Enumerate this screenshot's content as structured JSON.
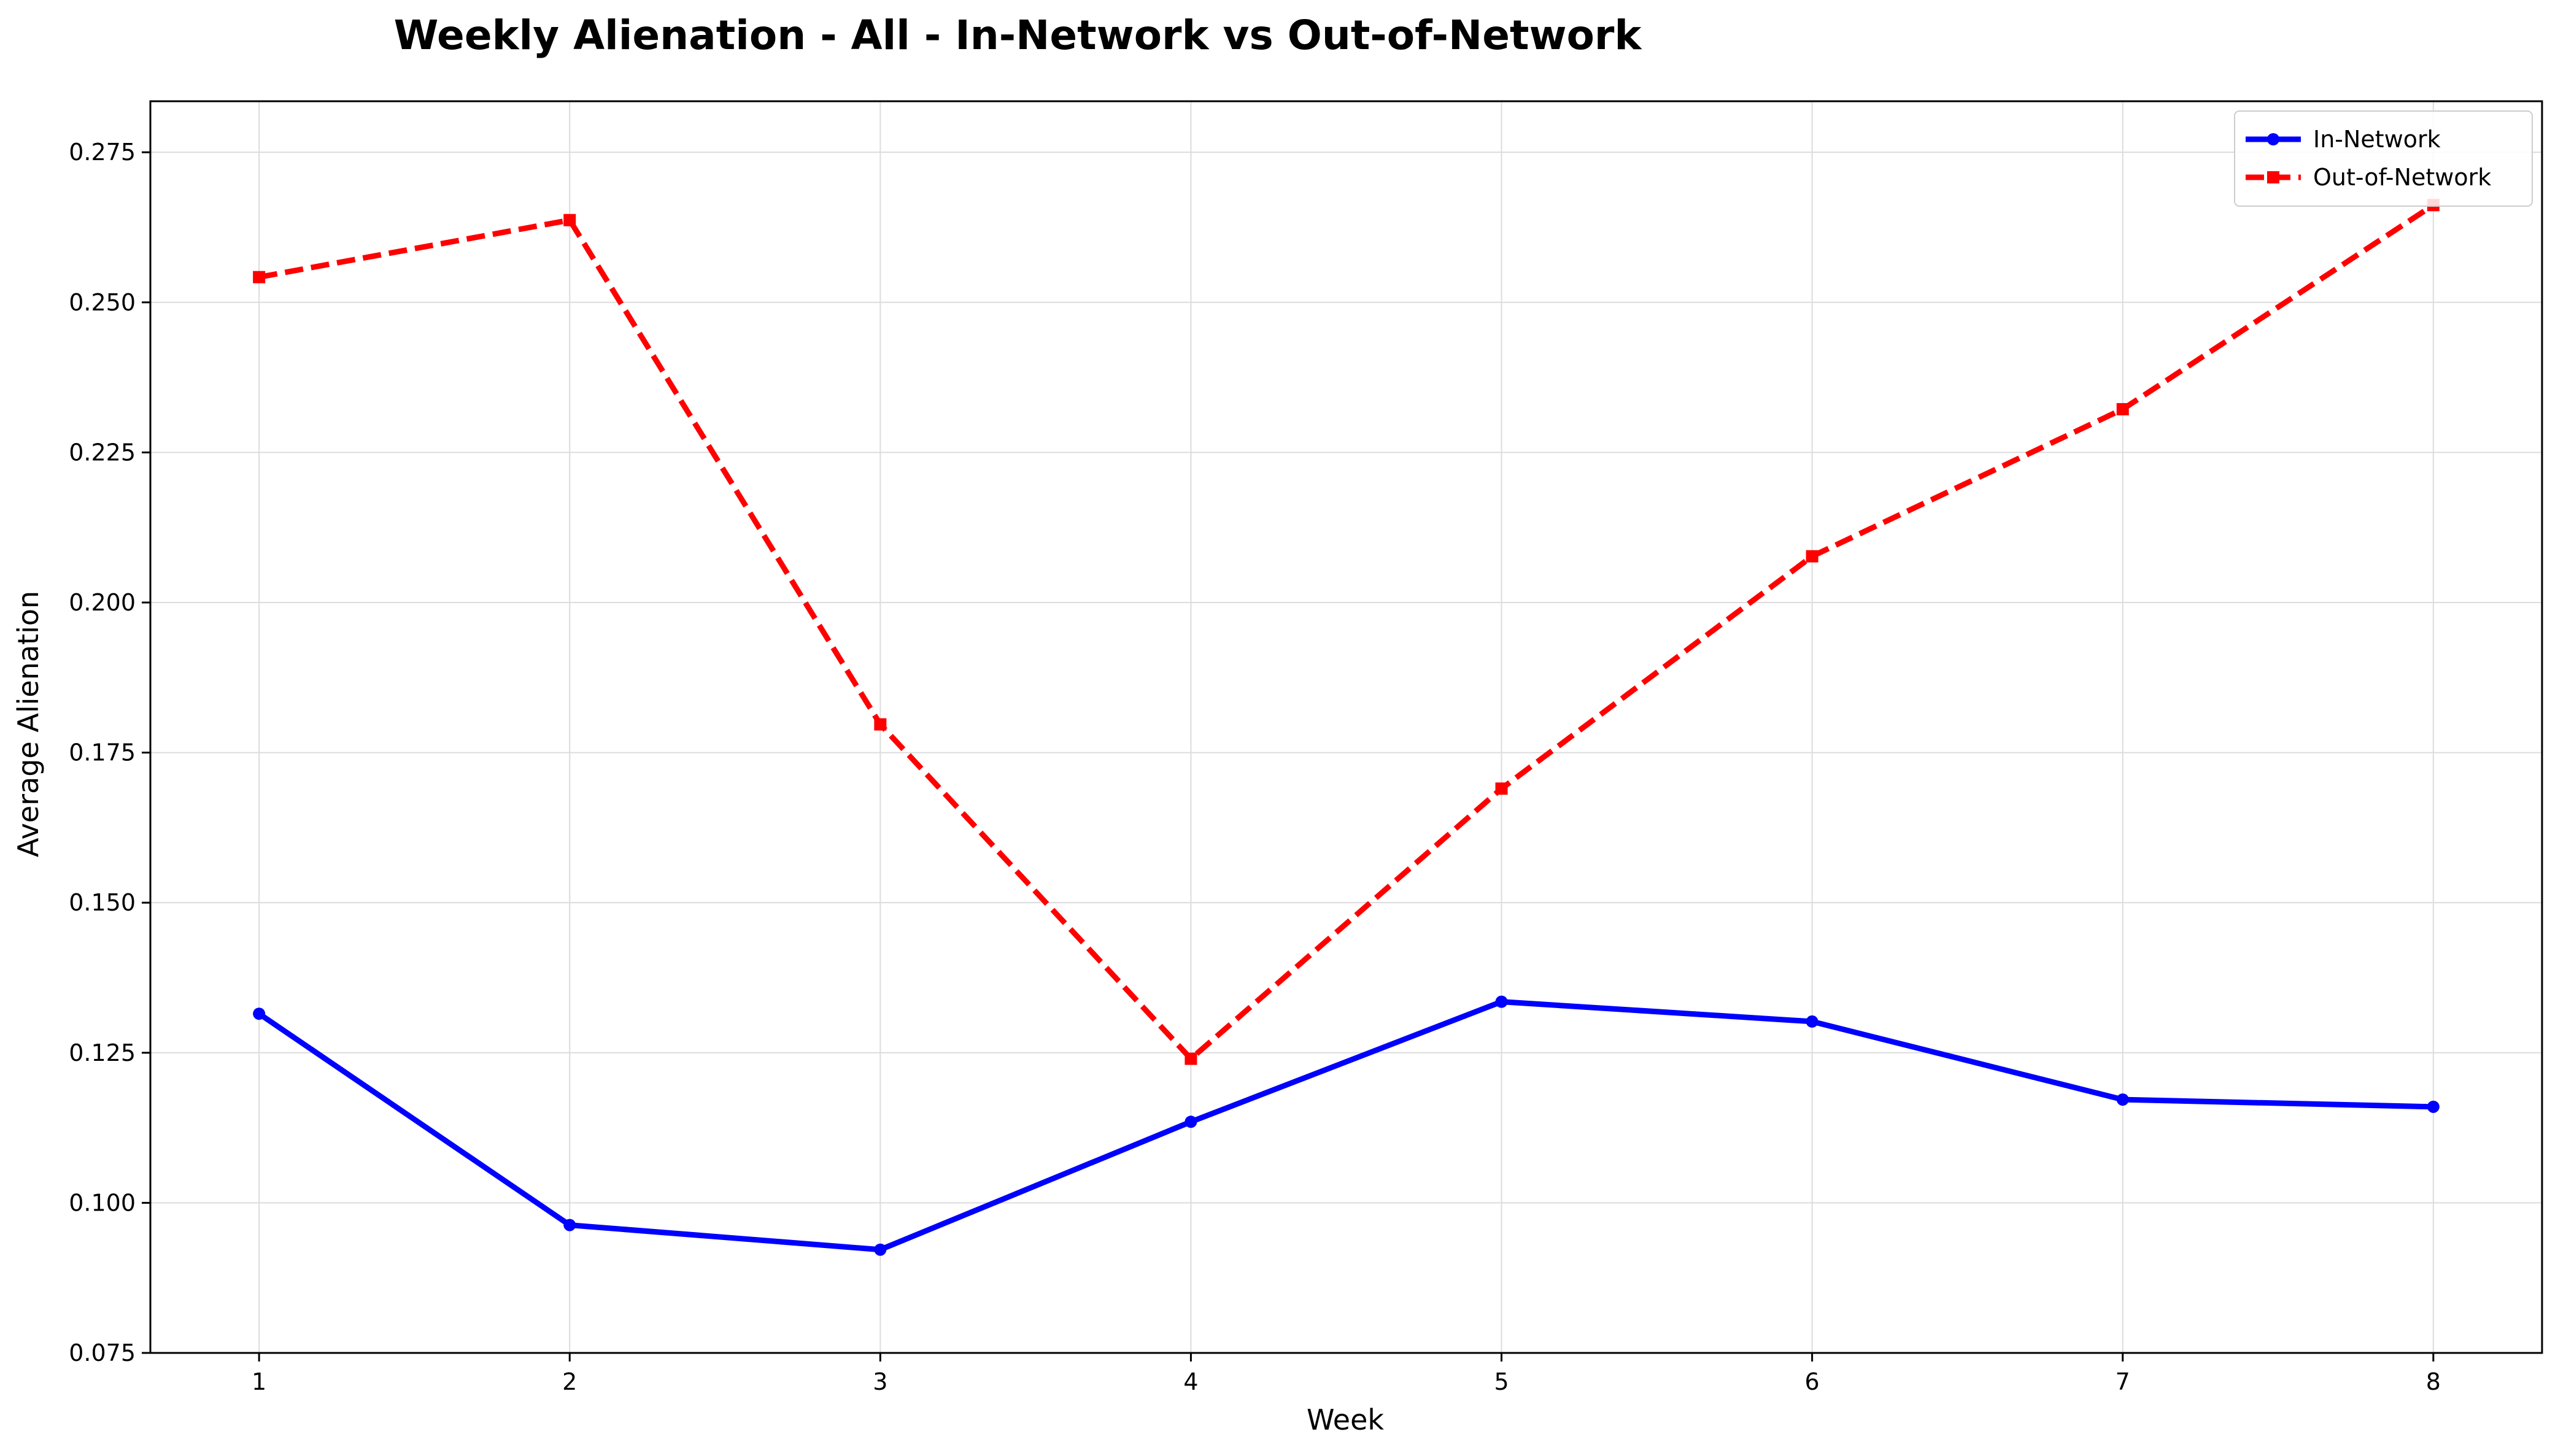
{
  "chart_data": {
    "type": "line",
    "title": "Weekly Alienation - All - In-Network vs Out-of-Network",
    "xlabel": "Week",
    "ylabel": "Average Alienation",
    "x": [
      1,
      2,
      3,
      4,
      5,
      6,
      7,
      8
    ],
    "x_tick_labels": [
      "1",
      "2",
      "3",
      "4",
      "5",
      "6",
      "7",
      "8"
    ],
    "xlim": [
      0.65,
      8.35
    ],
    "ylim": [
      0.075,
      0.2835
    ],
    "y_ticks": [
      0.075,
      0.1,
      0.125,
      0.15,
      0.175,
      0.2,
      0.225,
      0.25,
      0.275
    ],
    "y_tick_labels": [
      "0.075",
      "0.100",
      "0.125",
      "0.150",
      "0.175",
      "0.200",
      "0.225",
      "0.250",
      "0.275"
    ],
    "grid": true,
    "legend_position": "top-right",
    "series": [
      {
        "name": "In-Network",
        "color": "#0000ff",
        "line_style": "solid",
        "marker": "circle",
        "values": [
          0.1315,
          0.0963,
          0.0922,
          0.1135,
          0.1335,
          0.1302,
          0.1172,
          0.116
        ]
      },
      {
        "name": "Out-of-Network",
        "color": "#ff0000",
        "line_style": "dashed",
        "marker": "square",
        "values": [
          0.2542,
          0.2637,
          0.1797,
          0.124,
          0.169,
          0.2077,
          0.2322,
          0.2662
        ]
      }
    ]
  }
}
